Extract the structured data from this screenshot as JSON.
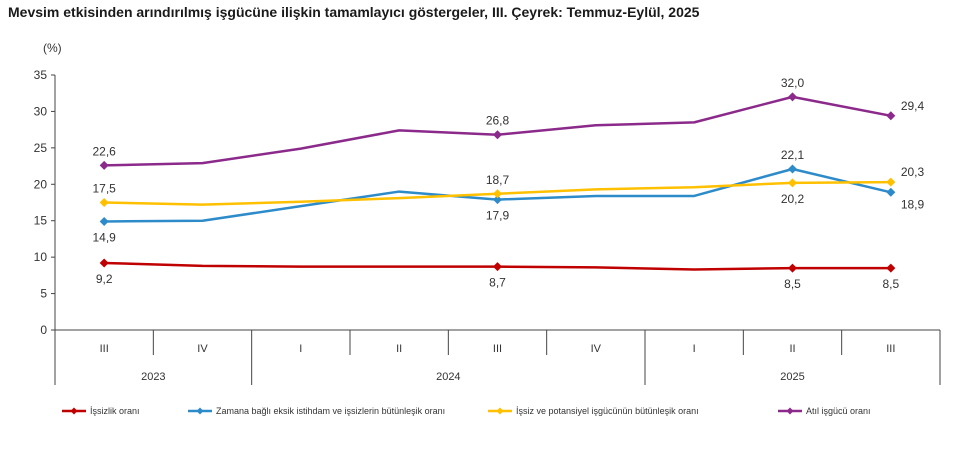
{
  "title": "Mevsim etkisinden arındırılmış işgücüne ilişkin tamamlayıcı göstergeler, III. Çeyrek: Temmuz-Eylül, 2025",
  "chart_data": {
    "type": "line",
    "ylabel": "(%)",
    "ylim": [
      0,
      35
    ],
    "yticks": [
      0,
      5,
      10,
      15,
      20,
      25,
      30,
      35
    ],
    "categories": [
      "III",
      "IV",
      "I",
      "II",
      "III",
      "IV",
      "I",
      "II",
      "III"
    ],
    "groups": [
      {
        "label": "2023",
        "span": 2
      },
      {
        "label": "2024",
        "span": 4
      },
      {
        "label": "2025",
        "span": 3
      }
    ],
    "series": [
      {
        "name": "İşsizlik oranı",
        "color": "#c00000",
        "values": [
          9.2,
          8.8,
          8.7,
          8.7,
          8.7,
          8.6,
          8.3,
          8.5,
          8.5
        ],
        "labels": [
          {
            "i": 0,
            "text": "9,2",
            "pos": "below"
          },
          {
            "i": 4,
            "text": "8,7",
            "pos": "below"
          },
          {
            "i": 7,
            "text": "8,5",
            "pos": "below"
          },
          {
            "i": 8,
            "text": "8,5",
            "pos": "below"
          }
        ]
      },
      {
        "name": "Zamana bağlı eksik istihdam ve işsizlerin bütünleşik oranı",
        "color": "#2e8bc9",
        "values": [
          14.9,
          15.0,
          17.0,
          19.0,
          17.9,
          18.4,
          18.4,
          22.1,
          18.9
        ],
        "labels": [
          {
            "i": 0,
            "text": "14,9",
            "pos": "below"
          },
          {
            "i": 4,
            "text": "17,9",
            "pos": "below"
          },
          {
            "i": 7,
            "text": "22,1",
            "pos": "above"
          },
          {
            "i": 8,
            "text": "18,9",
            "pos": "below-right"
          }
        ]
      },
      {
        "name": "İşsiz ve potansiyel işgücünün bütünleşik oranı",
        "color": "#ffc000",
        "values": [
          17.5,
          17.2,
          17.6,
          18.1,
          18.7,
          19.3,
          19.6,
          20.2,
          20.3
        ],
        "labels": [
          {
            "i": 0,
            "text": "17,5",
            "pos": "above"
          },
          {
            "i": 4,
            "text": "18,7",
            "pos": "above"
          },
          {
            "i": 7,
            "text": "20,2",
            "pos": "below"
          },
          {
            "i": 8,
            "text": "20,3",
            "pos": "above-right"
          }
        ]
      },
      {
        "name": "Atıl işgücü oranı",
        "color": "#8b2a8b",
        "values": [
          22.6,
          22.9,
          24.9,
          27.4,
          26.8,
          28.1,
          28.5,
          32.0,
          29.4
        ],
        "labels": [
          {
            "i": 0,
            "text": "22,6",
            "pos": "above"
          },
          {
            "i": 4,
            "text": "26,8",
            "pos": "above"
          },
          {
            "i": 7,
            "text": "32,0",
            "pos": "above"
          },
          {
            "i": 8,
            "text": "29,4",
            "pos": "above-right"
          }
        ]
      }
    ],
    "markers_at": [
      0,
      4,
      7,
      8
    ],
    "legend_position": "bottom",
    "grid": false
  }
}
